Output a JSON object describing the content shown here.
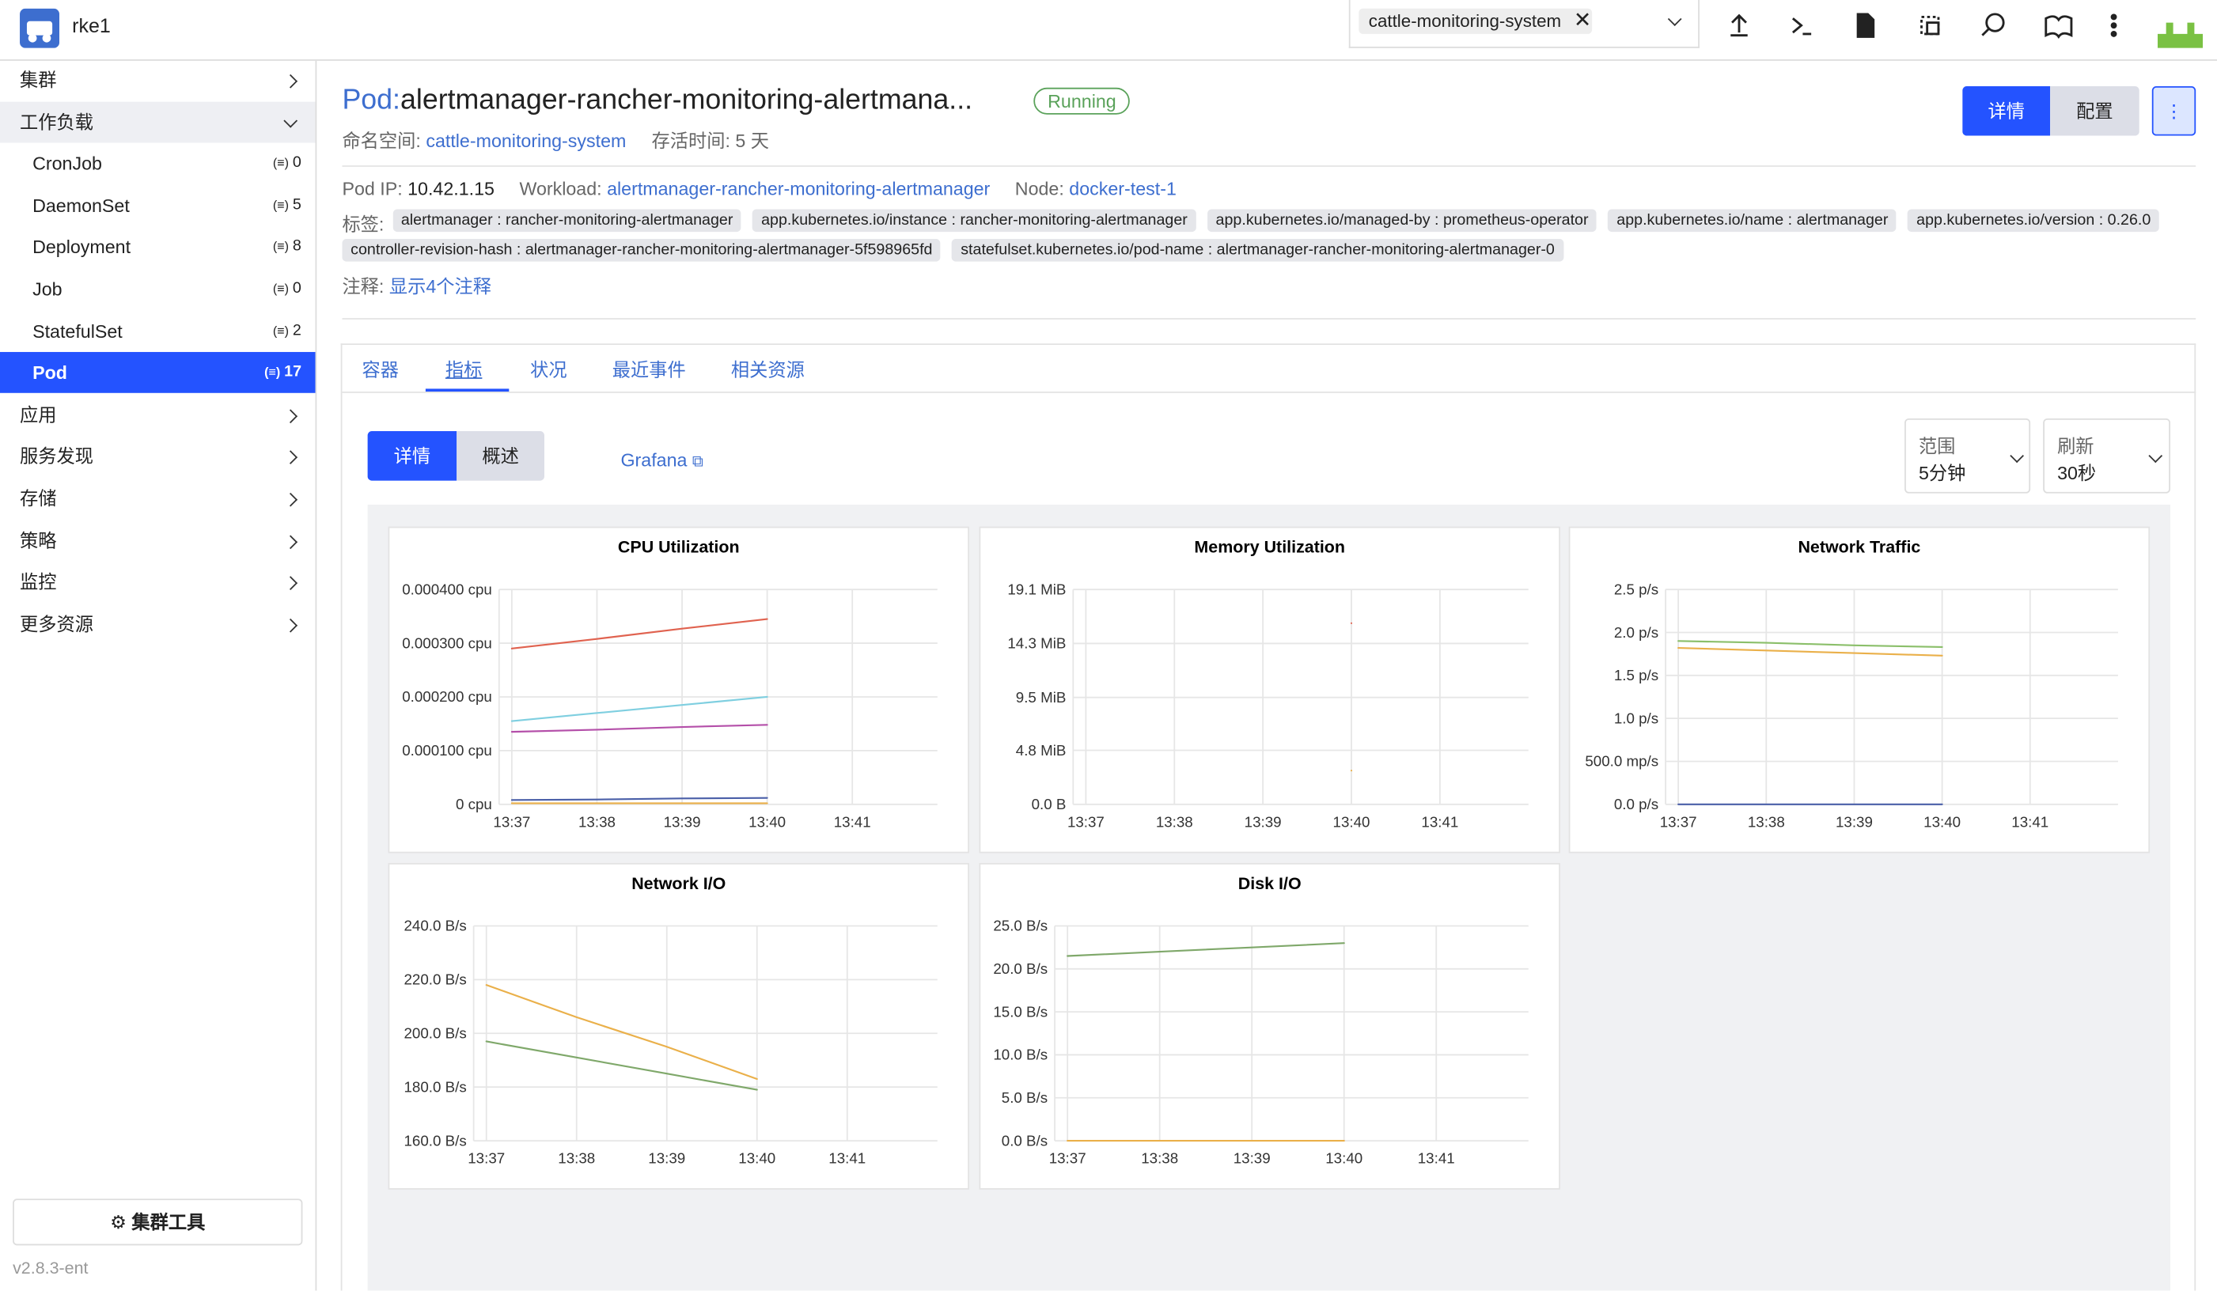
{
  "header": {
    "cluster": "rke1",
    "namespace": "cattle-monitoring-system"
  },
  "nav": [
    {
      "label": "集群",
      "expanded": false
    },
    {
      "label": "工作负载",
      "expanded": true,
      "children": [
        {
          "name": "CronJob",
          "count": 0
        },
        {
          "name": "DaemonSet",
          "count": 5
        },
        {
          "name": "Deployment",
          "count": 8
        },
        {
          "name": "Job",
          "count": 0
        },
        {
          "name": "StatefulSet",
          "count": 2
        },
        {
          "name": "Pod",
          "count": 17,
          "active": true
        }
      ]
    },
    {
      "label": "应用",
      "expanded": false
    },
    {
      "label": "服务发现",
      "expanded": false
    },
    {
      "label": "存储",
      "expanded": false
    },
    {
      "label": "策略",
      "expanded": false
    },
    {
      "label": "监控",
      "expanded": false
    },
    {
      "label": "更多资源",
      "expanded": false
    }
  ],
  "sidebar_footer": {
    "tools": "集群工具",
    "version": "v2.8.3-ent"
  },
  "page": {
    "kind": "Pod:",
    "name": "alertmanager-rancher-monitoring-alertmana...",
    "status": "Running",
    "namespace_label": "命名空间:",
    "namespace": "cattle-monitoring-system",
    "age_label": "存活时间:",
    "age": "5 天",
    "buttons": [
      "详情",
      "配置"
    ],
    "pod_ip_label": "Pod IP:",
    "pod_ip": "10.42.1.15",
    "workload_label": "Workload:",
    "workload": "alertmanager-rancher-monitoring-alertmanager",
    "node_label": "Node:",
    "node": "docker-test-1",
    "labels_label": "标签:",
    "labels": [
      "alertmanager : rancher-monitoring-alertmanager",
      "app.kubernetes.io/instance : rancher-monitoring-alertmanager",
      "app.kubernetes.io/managed-by : prometheus-operator",
      "app.kubernetes.io/name : alertmanager",
      "app.kubernetes.io/version : 0.26.0",
      "controller-revision-hash : alertmanager-rancher-monitoring-alertmanager-5f598965fd",
      "statefulset.kubernetes.io/pod-name : alertmanager-rancher-monitoring-alertmanager-0"
    ],
    "annotations_label": "注释:",
    "annotations_link": "显示4个注释"
  },
  "tabs": {
    "items": [
      "容器",
      "指标",
      "状况",
      "最近事件",
      "相关资源"
    ],
    "active": 1
  },
  "metrics": {
    "modes": [
      "详情",
      "概述"
    ],
    "grafana": "Grafana",
    "range_label": "范围",
    "range": "5分钟",
    "refresh_label": "刷新",
    "refresh": "30秒"
  },
  "charts": [
    {
      "type": "line",
      "title": "CPU Utilization",
      "categories": [
        "13:37",
        "13:38",
        "13:39",
        "13:40",
        "13:41"
      ],
      "ylim": [
        0,
        0.0004
      ],
      "yticks": [
        {
          "value": 0,
          "label": "0 cpu"
        },
        {
          "value": 0.0001,
          "label": "0.000100 cpu"
        },
        {
          "value": 0.0002,
          "label": "0.000200 cpu"
        },
        {
          "value": 0.0003,
          "label": "0.000300 cpu"
        },
        {
          "value": 0.0004,
          "label": "0.000400 cpu"
        }
      ],
      "series": [
        {
          "color": "#e0624f",
          "values": [
            0.00029,
            0.000308,
            0.000327,
            0.000345,
            null
          ]
        },
        {
          "color": "#7fcfe0",
          "values": [
            0.000155,
            0.00017,
            0.000185,
            0.0002,
            null
          ]
        },
        {
          "color": "#b44fa9",
          "values": [
            0.000135,
            0.000139,
            0.000144,
            0.000148,
            null
          ]
        },
        {
          "color": "#4a5fa8",
          "values": [
            8e-06,
            9e-06,
            1.1e-05,
            1.2e-05,
            null
          ]
        },
        {
          "color": "#eab04a",
          "values": [
            2e-06,
            2e-06,
            2e-06,
            2e-06,
            null
          ]
        }
      ]
    },
    {
      "type": "line",
      "title": "Memory Utilization",
      "categories": [
        "13:37",
        "13:38",
        "13:39",
        "13:40",
        "13:41"
      ],
      "ylim": [
        0,
        19.1
      ],
      "yticks": [
        {
          "value": 0,
          "label": "0.0 B"
        },
        {
          "value": 4.8,
          "label": "4.8 MiB"
        },
        {
          "value": 9.5,
          "label": "9.5 MiB"
        },
        {
          "value": 14.3,
          "label": "14.3 MiB"
        },
        {
          "value": 19.1,
          "label": "19.1 MiB"
        }
      ],
      "series": [
        {
          "color": "#e0624f",
          "values": [
            null,
            null,
            null,
            16.1,
            null
          ]
        },
        {
          "color": "#eab04a",
          "values": [
            null,
            null,
            null,
            3.0,
            null
          ]
        }
      ]
    },
    {
      "type": "line",
      "title": "Network Traffic",
      "categories": [
        "13:37",
        "13:38",
        "13:39",
        "13:40",
        "13:41"
      ],
      "ylim": [
        0,
        2.5
      ],
      "yticks": [
        {
          "value": 0,
          "label": "0.0 p/s"
        },
        {
          "value": 0.5,
          "label": "500.0 mp/s"
        },
        {
          "value": 1,
          "label": "1.0 p/s"
        },
        {
          "value": 1.5,
          "label": "1.5 p/s"
        },
        {
          "value": 2,
          "label": "2.0 p/s"
        },
        {
          "value": 2.5,
          "label": "2.5 p/s"
        }
      ],
      "series": [
        {
          "color": "#8bbf6a",
          "values": [
            1.9,
            1.88,
            1.85,
            1.83,
            null
          ]
        },
        {
          "color": "#eab04a",
          "values": [
            1.82,
            1.79,
            1.76,
            1.73,
            null
          ]
        },
        {
          "color": "#4a5fa8",
          "values": [
            0,
            0,
            0,
            0,
            null
          ]
        }
      ]
    },
    {
      "type": "line",
      "title": "Network I/O",
      "categories": [
        "13:37",
        "13:38",
        "13:39",
        "13:40",
        "13:41"
      ],
      "ylim": [
        160,
        240
      ],
      "yticks": [
        {
          "value": 160,
          "label": "160.0 B/s"
        },
        {
          "value": 180,
          "label": "180.0 B/s"
        },
        {
          "value": 200,
          "label": "200.0 B/s"
        },
        {
          "value": 220,
          "label": "220.0 B/s"
        },
        {
          "value": 240,
          "label": "240.0 B/s"
        }
      ],
      "series": [
        {
          "color": "#eab04a",
          "values": [
            218,
            206,
            195,
            183,
            null
          ]
        },
        {
          "color": "#7fa86a",
          "values": [
            197,
            191,
            185,
            179,
            null
          ]
        }
      ]
    },
    {
      "type": "line",
      "title": "Disk I/O",
      "categories": [
        "13:37",
        "13:38",
        "13:39",
        "13:40",
        "13:41"
      ],
      "ylim": [
        0,
        25
      ],
      "yticks": [
        {
          "value": 0,
          "label": "0.0 B/s"
        },
        {
          "value": 5,
          "label": "5.0 B/s"
        },
        {
          "value": 10,
          "label": "10.0 B/s"
        },
        {
          "value": 15,
          "label": "15.0 B/s"
        },
        {
          "value": 20,
          "label": "20.0 B/s"
        },
        {
          "value": 25,
          "label": "25.0 B/s"
        }
      ],
      "series": [
        {
          "color": "#7fa86a",
          "values": [
            21.5,
            22,
            22.5,
            23,
            null
          ]
        },
        {
          "color": "#eab04a",
          "values": [
            0,
            0,
            0,
            0,
            null
          ]
        }
      ]
    }
  ]
}
